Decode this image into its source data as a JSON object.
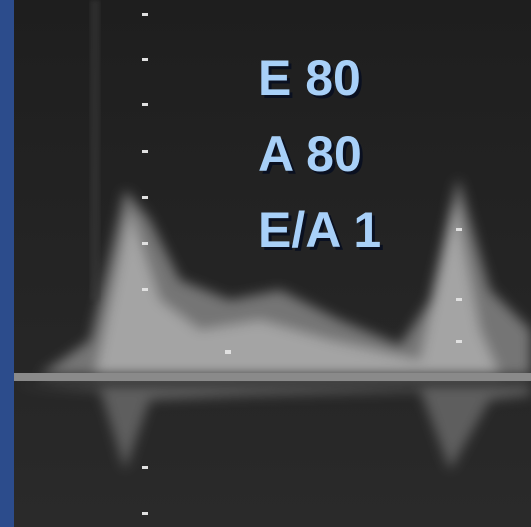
{
  "labels": [
    "E 80",
    "A 80",
    "E/A 1"
  ]
}
